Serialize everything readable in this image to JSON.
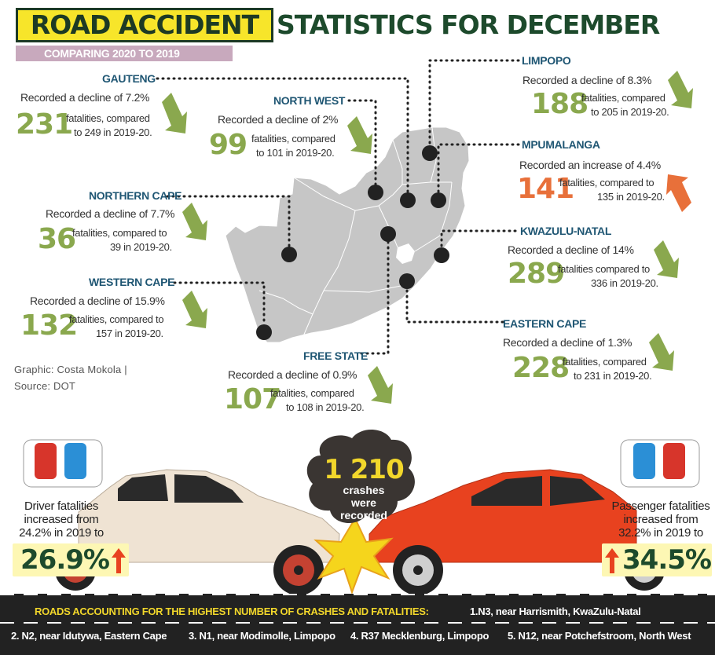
{
  "title": {
    "highlight": "ROAD ACCIDENT",
    "rest": "STATISTICS FOR DECEMBER",
    "subtitle": "COMPARING 2020 TO 2019"
  },
  "credit": {
    "line1": "Graphic: Costa Mokola |",
    "line2": "Source: DOT"
  },
  "provinces": {
    "gauteng": {
      "name": "GAUTENG",
      "change": "Recorded a decline of 7.2%",
      "value": "231",
      "line1": "fatalities, compared",
      "line2": "to 249 in 2019-20.",
      "direction": "down"
    },
    "north_west": {
      "name": "NORTH WEST",
      "change": "Recorded a decline of 2%",
      "value": "99",
      "line1": "fatalities, compared",
      "line2": "to 101 in 2019-20.",
      "direction": "down"
    },
    "limpopo": {
      "name": "LIMPOPO",
      "change": "Recorded a decline of 8.3%",
      "value": "188",
      "line1": "fatalities, compared",
      "line2": "to 205 in 2019-20.",
      "direction": "down"
    },
    "mpumalanga": {
      "name": "MPUMALANGA",
      "change": "Recorded an increase of 4.4%",
      "value": "141",
      "line1": "fatalities, compared to",
      "line2": "135 in 2019-20.",
      "direction": "up"
    },
    "northern_cape": {
      "name": "NORTHERN CAPE",
      "change": "Recorded a decline of 7.7%",
      "value": "36",
      "line1": "fatalities, compared to",
      "line2": "39 in 2019-20.",
      "direction": "down"
    },
    "kwazulu_natal": {
      "name": "KWAZULU-NATAL",
      "change": "Recorded a decline of 14%",
      "value": "289",
      "line1": "fatalities compared to",
      "line2": "336 in 2019-20.",
      "direction": "down"
    },
    "western_cape": {
      "name": "WESTERN CAPE",
      "change": "Recorded a decline of 15.9%",
      "value": "132",
      "line1": "fatalities, compared to",
      "line2": "157 in 2019-20.",
      "direction": "down"
    },
    "eastern_cape": {
      "name": "EASTERN CAPE",
      "change": "Recorded a decline of 1.3%",
      "value": "228",
      "line1": "fatalities, compared",
      "line2": "to 231 in 2019-20.",
      "direction": "down"
    },
    "free_state": {
      "name": "FREE STATE",
      "change": "Recorded a decline of 0.9%",
      "value": "107",
      "line1": "fatalities, compared",
      "line2": "to 108 in 2019-20.",
      "direction": "down"
    }
  },
  "crashes": {
    "value": "1 210",
    "line1": "crashes",
    "line2": "were",
    "line3": "recorded"
  },
  "driver": {
    "line1": "Driver fatalities",
    "line2": "increased from",
    "line3": "24.2% in 2019 to",
    "value": "26.9%"
  },
  "passenger": {
    "line1": "Passenger fatalities",
    "line2": "increased from",
    "line3": "32.2% in 2019 to",
    "value": "34.5%"
  },
  "roads": {
    "heading": "ROADS ACCOUNTING FOR THE HIGHEST NUMBER OF CRASHES AND FATALITIES:",
    "items": [
      "1.N3, near Harrismith, KwaZulu-Natal",
      "2. N2, near Idutywa, Eastern Cape",
      "3. N1, near Modimolle, Limpopo",
      "4. R37 Mecklenburg, Limpopo",
      "5. N12, near Potchefstroom, North West"
    ]
  },
  "colors": {
    "decline_arrow": "#8aa84e",
    "increase_arrow": "#e8703a",
    "province_name": "#1f5673",
    "title_yellow": "#f7e52a",
    "title_green": "#1d4a2c",
    "map_fill": "#c6c6c6"
  }
}
